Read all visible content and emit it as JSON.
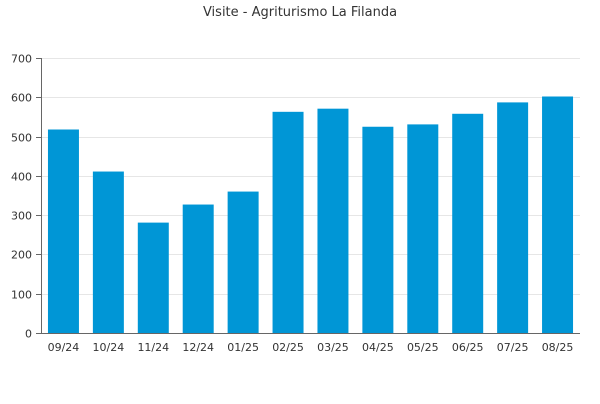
{
  "chart_data": {
    "type": "bar",
    "title": "Visite - Agriturismo La Filanda",
    "xlabel": "",
    "ylabel": "",
    "categories": [
      "09/24",
      "10/24",
      "11/24",
      "12/24",
      "01/25",
      "02/25",
      "03/25",
      "04/25",
      "05/25",
      "06/25",
      "07/25",
      "08/25"
    ],
    "values": [
      518,
      411,
      281,
      327,
      360,
      563,
      571,
      525,
      531,
      558,
      587,
      602
    ],
    "ylim": [
      0,
      700
    ],
    "yticks": [
      0,
      100,
      200,
      300,
      400,
      500,
      600,
      700
    ],
    "grid": true,
    "legend": "none",
    "bar_color": "#0096d6"
  }
}
